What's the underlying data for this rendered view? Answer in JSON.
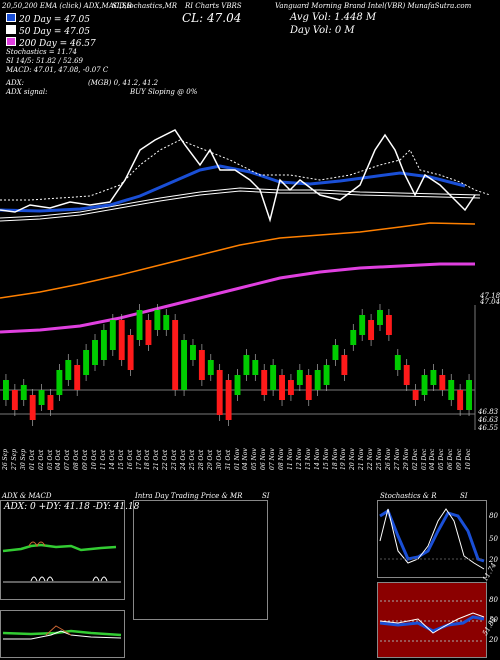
{
  "header": {
    "top_left": "20,50,200 EMA (click) ADX,MACD,B",
    "top_mid": "SI,Stochastics,MR",
    "top_r1": "RI Charts VBRS",
    "top_right": "Vanguard Morning Brand Intel(VBR) MunafaSutra.com",
    "ema20": "20   Day = 47.05",
    "ema50": "50   Day = 47.05",
    "ema200": "200   Day = 46.57",
    "cl": "CL: 47.04",
    "avg_vol": "Avg Vol: 1.448   M",
    "day_vol": "Day Vol: 0   M",
    "stochastics": "Stochastics = 11.74",
    "si": "SI 14/5: 51.82  / 52.69",
    "macd": "MACD: 47.01, 47.08, -0.07 C",
    "adx": "ADX:",
    "adx_mid": "(MGB) 0, 41.2, 41.2",
    "adx_signal": "ADX  signal:",
    "buy_signal": "BUY Sloping @ 0%"
  },
  "price_axis": {
    "label_top": "47.18",
    "label_top2": "47.04",
    "low1": "46.83",
    "low2": "46.63",
    "low3": "46.55"
  },
  "dates": [
    "26 Sep",
    "27 Sep",
    "30 Sep",
    "01 Oct",
    "02 Oct",
    "03 Oct",
    "04 Oct",
    "07 Oct",
    "08 Oct",
    "09 Oct",
    "10 Oct",
    "11 Oct",
    "14 Oct",
    "15 Oct",
    "16 Oct",
    "17 Oct",
    "18 Oct",
    "21 Oct",
    "22 Oct",
    "23 Oct",
    "24 Oct",
    "25 Oct",
    "28 Oct",
    "29 Oct",
    "30 Oct",
    "31 Oct",
    "01 Nov",
    "04 Nov",
    "05 Nov",
    "06 Nov",
    "07 Nov",
    "08 Nov",
    "11 Nov",
    "12 Nov",
    "13 Nov",
    "14 Nov",
    "15 Nov",
    "18 Nov",
    "19 Nov",
    "20 Nov",
    "21 Nov",
    "22 Nov",
    "25 Nov",
    "26 Nov",
    "27 Nov",
    "29 Nov",
    "02 Dec",
    "03 Dec",
    "04 Dec",
    "05 Dec",
    "06 Dec",
    "09 Dec",
    "10 Dec"
  ],
  "panels": {
    "adx_title": "ADX  & MACD",
    "adx_values": "ADX: 0   +DY: 41.18   -DY: 41.18",
    "intra_title": "Intra  Day Trading Price  & MR",
    "intra_si": "SI",
    "stoch_title": "Stochastics & R",
    "stoch_si": "SI",
    "stoch_axis": [
      "80",
      "50",
      "20"
    ],
    "stoch_last": "11.74",
    "rsi_axis": [
      "80",
      "50",
      "20"
    ],
    "rsi_last": "51.82"
  },
  "colors": {
    "ema20": "#1a4fd6",
    "ema50": "#ffffff",
    "ema200": "#ff8000",
    "bb": "#e040e0",
    "up": "#00cc00",
    "down": "#ff1a1a"
  }
}
